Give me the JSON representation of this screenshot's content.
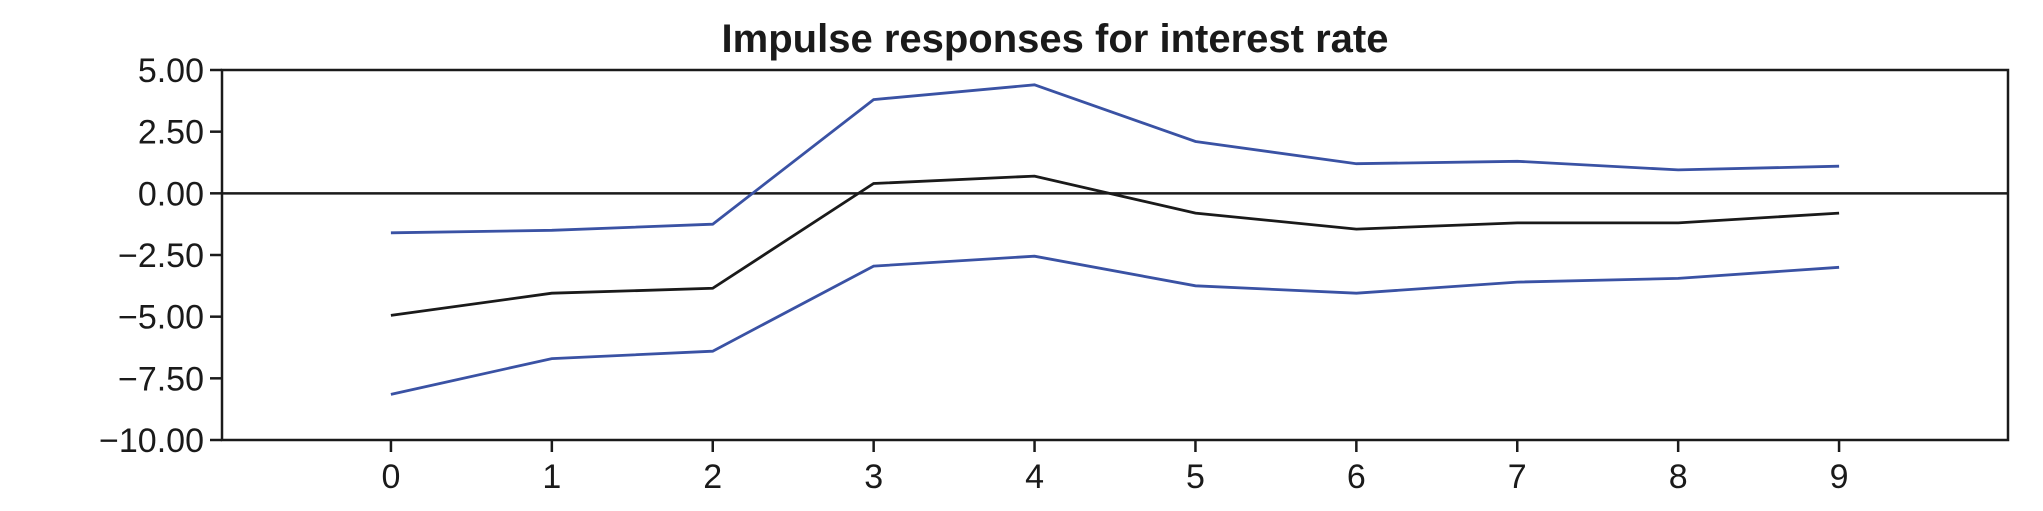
{
  "chart_data": {
    "type": "line",
    "title": "Impulse responses for interest rate",
    "xlabel": "",
    "ylabel": "",
    "x": [
      0,
      1,
      2,
      3,
      4,
      5,
      6,
      7,
      8,
      9
    ],
    "x_ticks": [
      "0",
      "1",
      "2",
      "3",
      "4",
      "5",
      "6",
      "7",
      "8",
      "9"
    ],
    "xlim": [
      -1.05,
      10.05
    ],
    "y_ticks": [
      "5.00",
      "2.50",
      "0.00",
      "−2.50",
      "−5.00",
      "−7.50",
      "−10.00"
    ],
    "y_tick_values": [
      5,
      2.5,
      0,
      -2.5,
      -5,
      -7.5,
      -10
    ],
    "ylim": [
      -10,
      5
    ],
    "grid": false,
    "zero_line": true,
    "series": [
      {
        "role": "upper-band",
        "color": "#3a52a4",
        "values": [
          -1.6,
          -1.5,
          -1.25,
          3.8,
          4.4,
          2.1,
          1.2,
          1.3,
          0.95,
          1.1
        ]
      },
      {
        "role": "response",
        "color": "#1a1a1a",
        "values": [
          -4.95,
          -4.05,
          -3.85,
          0.4,
          0.7,
          -0.8,
          -1.45,
          -1.2,
          -1.2,
          -0.8
        ]
      },
      {
        "role": "lower-band",
        "color": "#3a52a4",
        "values": [
          -8.15,
          -6.7,
          -6.4,
          -2.95,
          -2.55,
          -3.75,
          -4.05,
          -3.6,
          -3.45,
          -3.0
        ]
      }
    ]
  }
}
